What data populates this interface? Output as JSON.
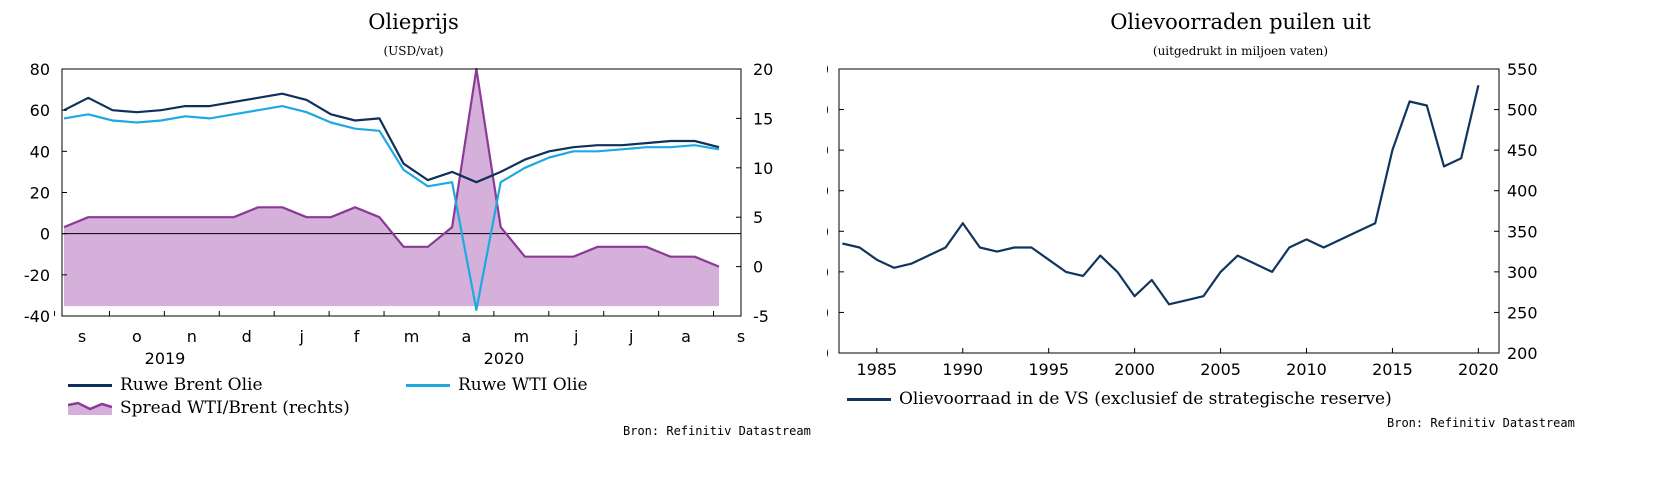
{
  "colors": {
    "brent": "#10305a",
    "wti": "#1fa9e1",
    "spread": "#8b3a96",
    "spread_fill": "#d4b0db",
    "dark": "#12355f"
  },
  "left": {
    "title": "Olieprijs",
    "subtitle": "(USD/vat)",
    "source": "Bron: Refinitiv Datastream",
    "legend": {
      "brent": "Ruwe Brent Olie",
      "wti": "Ruwe WTI Olie",
      "spread": "Spread WTI/Brent (rechts)"
    },
    "years": [
      "2019",
      "2020"
    ],
    "chart_data": {
      "type": "line",
      "x": [
        "2019-08-26",
        "2019-09-09",
        "2019-09-23",
        "2019-10-07",
        "2019-10-21",
        "2019-11-04",
        "2019-11-18",
        "2019-12-02",
        "2019-12-16",
        "2019-12-30",
        "2020-01-13",
        "2020-01-27",
        "2020-02-10",
        "2020-02-24",
        "2020-03-09",
        "2020-03-23",
        "2020-04-06",
        "2020-04-20",
        "2020-05-04",
        "2020-05-18",
        "2020-06-01",
        "2020-06-15",
        "2020-06-29",
        "2020-07-13",
        "2020-07-27",
        "2020-08-10",
        "2020-08-24",
        "2020-09-07"
      ],
      "x_tick_labels": [
        "s",
        "o",
        "n",
        "d",
        "j",
        "f",
        "m",
        "a",
        "m",
        "j",
        "j",
        "a",
        "s"
      ],
      "ylim_left": [
        -40,
        80
      ],
      "ylim_right": [
        -5,
        20
      ],
      "yticks_left": [
        -40,
        -20,
        0,
        20,
        40,
        60,
        80
      ],
      "yticks_right": [
        -5,
        0,
        5,
        10,
        15,
        20
      ],
      "series": [
        {
          "name": "Ruwe Brent Olie",
          "axis": "left",
          "values": [
            60,
            66,
            60,
            59,
            60,
            62,
            62,
            64,
            66,
            68,
            65,
            58,
            55,
            56,
            34,
            26,
            30,
            25,
            30,
            36,
            40,
            42,
            43,
            43,
            44,
            45,
            45,
            42
          ]
        },
        {
          "name": "Ruwe WTI Olie",
          "axis": "left",
          "values": [
            56,
            58,
            55,
            54,
            55,
            57,
            56,
            58,
            60,
            62,
            59,
            54,
            51,
            50,
            31,
            23,
            25,
            -37,
            25,
            32,
            37,
            40,
            40,
            41,
            42,
            42,
            43,
            41
          ]
        },
        {
          "name": "Spread WTI/Brent (rechts)",
          "axis": "right",
          "values": [
            4,
            5,
            5,
            5,
            5,
            5,
            5,
            5,
            6,
            6,
            5,
            5,
            6,
            5,
            2,
            2,
            4,
            20,
            4,
            1,
            1,
            1,
            2,
            2,
            2,
            1,
            1,
            0
          ]
        }
      ]
    }
  },
  "right": {
    "title": "Olievoorraden puilen uit",
    "subtitle": "(uitgedrukt in miljoen vaten)",
    "source": "Bron: Refinitiv Datastream",
    "legend": {
      "series": "Olievoorraad in de VS (exclusief de strategische reserve)"
    },
    "chart_data": {
      "type": "line",
      "x": [
        1983,
        1984,
        1985,
        1986,
        1987,
        1988,
        1989,
        1990,
        1991,
        1992,
        1993,
        1994,
        1995,
        1996,
        1997,
        1998,
        1999,
        2000,
        2001,
        2002,
        2003,
        2004,
        2005,
        2006,
        2007,
        2008,
        2009,
        2010,
        2011,
        2012,
        2013,
        2014,
        2015,
        2016,
        2017,
        2018,
        2019,
        2020
      ],
      "xticks": [
        1985,
        1990,
        1995,
        2000,
        2005,
        2010,
        2015,
        2020
      ],
      "ylim": [
        200,
        550
      ],
      "yticks": [
        200,
        250,
        300,
        350,
        400,
        450,
        500,
        550
      ],
      "series": [
        {
          "name": "Olievoorraad in de VS (exclusief de strategische reserve)",
          "values": [
            335,
            330,
            315,
            305,
            310,
            320,
            330,
            360,
            330,
            325,
            330,
            330,
            315,
            300,
            295,
            320,
            300,
            270,
            290,
            260,
            265,
            270,
            300,
            320,
            310,
            300,
            330,
            340,
            330,
            340,
            350,
            360,
            450,
            510,
            505,
            430,
            440,
            530
          ]
        }
      ]
    }
  }
}
